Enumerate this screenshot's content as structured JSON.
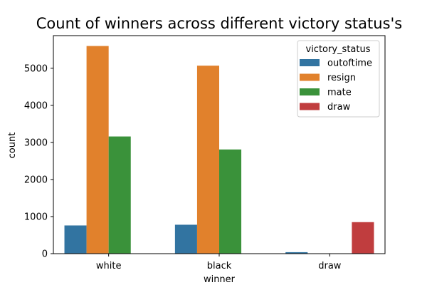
{
  "chart_data": {
    "type": "bar",
    "title": "Count of winners across different victory status's",
    "xlabel": "winner",
    "ylabel": "count",
    "categories": [
      "white",
      "black",
      "draw"
    ],
    "series": [
      {
        "name": "outoftime",
        "color": "#3274a1",
        "values": [
          760,
          780,
          40
        ]
      },
      {
        "name": "resign",
        "color": "#e1812c",
        "values": [
          5600,
          5070,
          0
        ]
      },
      {
        "name": "mate",
        "color": "#3a923a",
        "values": [
          3160,
          2810,
          0
        ]
      },
      {
        "name": "draw",
        "color": "#c03d3e",
        "values": [
          0,
          0,
          850
        ]
      }
    ],
    "ylim": [
      0,
      5880
    ],
    "yticks": [
      0,
      1000,
      2000,
      3000,
      4000,
      5000
    ],
    "grid": false,
    "legend": {
      "title": "victory_status",
      "placement": "top-right"
    }
  }
}
